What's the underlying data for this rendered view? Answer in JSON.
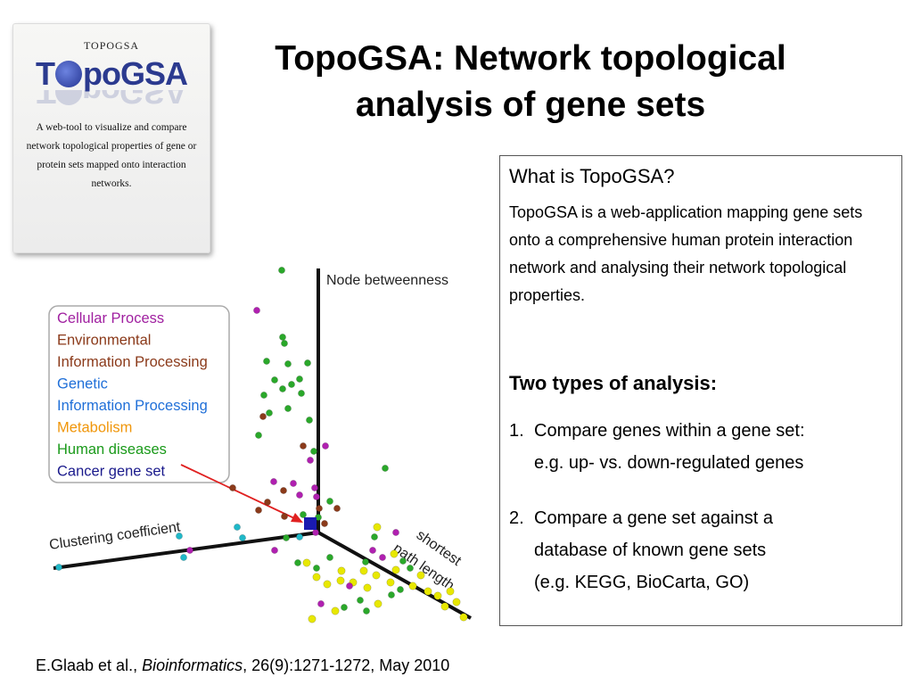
{
  "logo": {
    "small_title": "TOPOGSA",
    "big_title_left": "T",
    "big_title_right": "poGSA",
    "description": "A web-tool to visualize and compare network topological properties of gene or protein sets mapped onto interaction networks."
  },
  "slide": {
    "title": "TopoGSA: Network topological analysis of gene sets"
  },
  "infobox": {
    "heading": "What is TopoGSA?",
    "body": "TopoGSA is a web-application mapping gene sets onto a comprehensive human protein interaction network and analysing their network topological properties.",
    "subheading": "Two types of analysis:",
    "items": [
      {
        "number": "1.",
        "line1": "Compare genes within a gene set:",
        "line2": "e.g. up- vs. down-regulated genes"
      },
      {
        "number": "2.",
        "line1": "Compare a gene set against a",
        "line2": "database of known gene sets",
        "line3": "(e.g. KEGG, BioCarta, GO)"
      }
    ]
  },
  "plot": {
    "axis_vertical": "Node betweenness",
    "axis_left": "Clustering coefficient",
    "axis_right_line1": "shortest",
    "axis_right_line2": "path length",
    "legend": [
      {
        "label": "Cellular Process",
        "color": "#a020a0"
      },
      {
        "label": "Environmental",
        "color": "#8b3a1a"
      },
      {
        "label": "Information Processing",
        "color": "#8b3a1a"
      },
      {
        "label": "Genetic",
        "color": "#1f6fd8"
      },
      {
        "label": "Information Processing",
        "color": "#1f6fd8"
      },
      {
        "label": "Metabolism",
        "color": "#f0960a"
      },
      {
        "label": "Human diseases",
        "color": "#1a9a1a"
      },
      {
        "label": "Cancer gene set",
        "color": "#1a1a8c"
      }
    ]
  },
  "citation": {
    "authors": "E.Glaab et al., ",
    "journal": "Bioinformatics",
    "details": ", 26(9):1271-1272, May 2010"
  }
}
